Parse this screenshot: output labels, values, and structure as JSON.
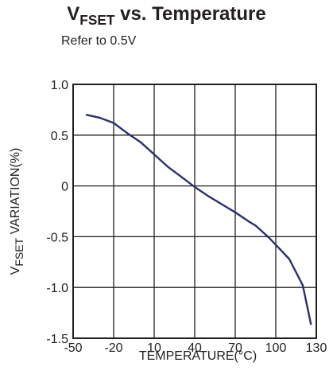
{
  "title": {
    "main": "V",
    "sub": "FSET",
    "rest": " vs. Temperature"
  },
  "subtitle": "Refer to 0.5V",
  "colors": {
    "line": "#2b2f6e",
    "grid": "#231f20",
    "text": "#231f20"
  },
  "chart_data": {
    "type": "line",
    "title": "VFSET vs. Temperature",
    "subtitle": "Refer to 0.5V",
    "xlabel": "TEMPERATURE(°C)",
    "ylabel": {
      "main": "V",
      "sub": "FSET",
      "rest": " VARIATION(%)"
    },
    "xlim": [
      -50,
      130
    ],
    "ylim": [
      -1.5,
      1.0
    ],
    "xticks": [
      -50,
      -20,
      10,
      40,
      70,
      100,
      130
    ],
    "xtick_labels": [
      "-50",
      "-20",
      "10",
      "40",
      "70",
      "100",
      "130"
    ],
    "yticks": [
      1.0,
      0.5,
      0,
      -0.5,
      -1.0,
      -1.5
    ],
    "ytick_labels": [
      "1.0",
      "0.5",
      "0",
      "-0.5",
      "-1.0",
      "-1.5"
    ],
    "grid": true,
    "series": [
      {
        "x": [
          -40,
          -30,
          -20,
          -10,
          0,
          10,
          20,
          30,
          40,
          50,
          60,
          70,
          80,
          85,
          90,
          95,
          100,
          110,
          120,
          126
        ],
        "y": [
          0.7,
          0.67,
          0.62,
          0.52,
          0.43,
          0.31,
          0.19,
          0.09,
          -0.01,
          -0.1,
          -0.18,
          -0.26,
          -0.35,
          -0.39,
          -0.45,
          -0.51,
          -0.58,
          -0.72,
          -0.98,
          -1.36
        ]
      }
    ]
  }
}
